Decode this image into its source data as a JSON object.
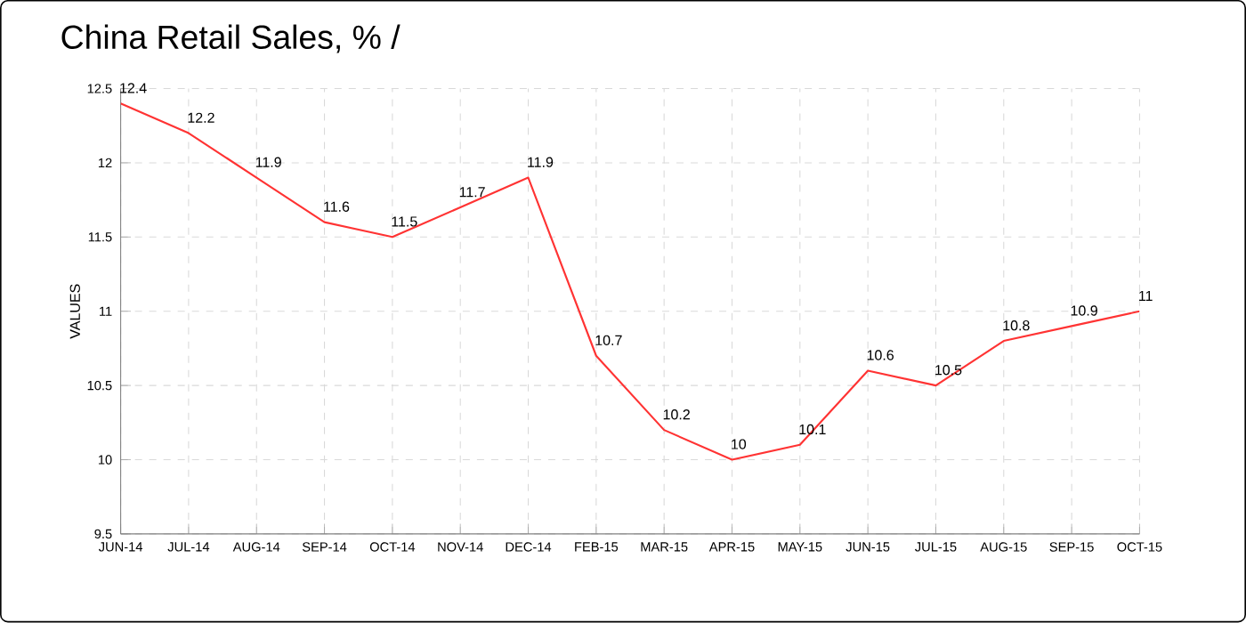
{
  "chart_data": {
    "type": "line",
    "title": "China Retail Sales, % /",
    "ylabel": "VALUES",
    "categories": [
      "JUN-14",
      "JUL-14",
      "AUG-14",
      "SEP-14",
      "OCT-14",
      "NOV-14",
      "DEC-14",
      "FEB-15",
      "MAR-15",
      "APR-15",
      "MAY-15",
      "JUN-15",
      "JUL-15",
      "AUG-15",
      "SEP-15",
      "OCT-15"
    ],
    "series": [
      {
        "color": "#ff3333",
        "values": [
          12.4,
          12.2,
          11.9,
          11.6,
          11.5,
          11.7,
          11.9,
          10.7,
          10.2,
          10,
          10.1,
          10.6,
          10.5,
          10.8,
          10.9,
          11
        ]
      }
    ],
    "ylim": [
      9.5,
      12.5
    ],
    "yticks": [
      9.5,
      10,
      10.5,
      11,
      11.5,
      12,
      12.5
    ],
    "grid": true,
    "data_labels": true,
    "marker": "none",
    "line_style": "solid"
  }
}
